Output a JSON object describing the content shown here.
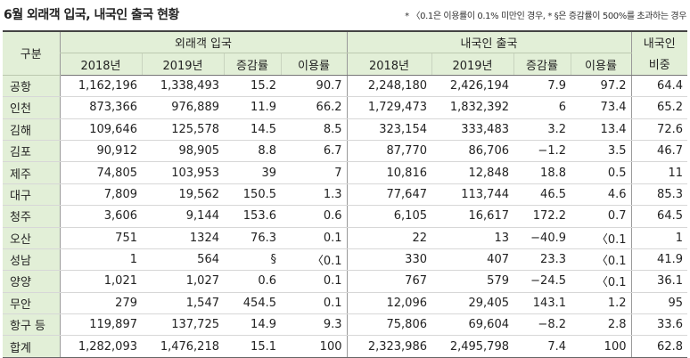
{
  "title": "6월 외래객 입국, 내국인 출국 현황",
  "note": "* 〈0.1은 이용률이 0.1% 미만인 경우, * §은 증감률이 500%를 초과하는 경우",
  "header": {
    "gubun": "구분",
    "foreign_group": "외래객 입국",
    "domestic_group": "내국인 출국",
    "ratio_group_l1": "내국인",
    "ratio_group_l2": "비중",
    "col_2018": "2018년",
    "col_2019": "2019년",
    "col_change": "증감률",
    "col_usage": "이용률"
  },
  "rows": [
    {
      "name": "공항",
      "f2018": "1,162,196",
      "f2019": "1,338,493",
      "fchg": "15.2",
      "fuse": "90.7",
      "d2018": "2,248,180",
      "d2019": "2,426,194",
      "dchg": "7.9",
      "duse": "97.2",
      "ratio": "64.4"
    },
    {
      "name": "인천",
      "f2018": "873,366",
      "f2019": "976,889",
      "fchg": "11.9",
      "fuse": "66.2",
      "d2018": "1,729,473",
      "d2019": "1,832,392",
      "dchg": "6",
      "duse": "73.4",
      "ratio": "65.2"
    },
    {
      "name": "김해",
      "f2018": "109,646",
      "f2019": "125,578",
      "fchg": "14.5",
      "fuse": "8.5",
      "d2018": "323,154",
      "d2019": "333,483",
      "dchg": "3.2",
      "duse": "13.4",
      "ratio": "72.6"
    },
    {
      "name": "김포",
      "f2018": "90,912",
      "f2019": "98,905",
      "fchg": "8.8",
      "fuse": "6.7",
      "d2018": "87,770",
      "d2019": "86,706",
      "dchg": "−1.2",
      "duse": "3.5",
      "ratio": "46.7"
    },
    {
      "name": "제주",
      "f2018": "74,805",
      "f2019": "103,953",
      "fchg": "39",
      "fuse": "7",
      "d2018": "10,816",
      "d2019": "12,848",
      "dchg": "18.8",
      "duse": "0.5",
      "ratio": "11"
    },
    {
      "name": "대구",
      "f2018": "7,809",
      "f2019": "19,562",
      "fchg": "150.5",
      "fuse": "1.3",
      "d2018": "77,647",
      "d2019": "113,744",
      "dchg": "46.5",
      "duse": "4.6",
      "ratio": "85.3"
    },
    {
      "name": "청주",
      "f2018": "3,606",
      "f2019": "9,144",
      "fchg": "153.6",
      "fuse": "0.6",
      "d2018": "6,105",
      "d2019": "16,617",
      "dchg": "172.2",
      "duse": "0.7",
      "ratio": "64.5"
    },
    {
      "name": "오산",
      "f2018": "751",
      "f2019": "1324",
      "fchg": "76.3",
      "fuse": "0.1",
      "d2018": "22",
      "d2019": "13",
      "dchg": "−40.9",
      "duse": "〈0.1",
      "ratio": "1"
    },
    {
      "name": "성남",
      "f2018": "1",
      "f2019": "564",
      "fchg": "§",
      "fuse": "〈0.1",
      "d2018": "330",
      "d2019": "407",
      "dchg": "23.3",
      "duse": "〈0.1",
      "ratio": "41.9"
    },
    {
      "name": "양양",
      "f2018": "1,021",
      "f2019": "1,027",
      "fchg": "0.6",
      "fuse": "0.1",
      "d2018": "767",
      "d2019": "579",
      "dchg": "−24.5",
      "duse": "〈0.1",
      "ratio": "36.1"
    },
    {
      "name": "무안",
      "f2018": "279",
      "f2019": "1,547",
      "fchg": "454.5",
      "fuse": "0.1",
      "d2018": "12,096",
      "d2019": "29,405",
      "dchg": "143.1",
      "duse": "1.2",
      "ratio": "95"
    },
    {
      "name": "항구 등",
      "f2018": "119,897",
      "f2019": "137,725",
      "fchg": "14.9",
      "fuse": "9.3",
      "d2018": "75,806",
      "d2019": "69,604",
      "dchg": "−8.2",
      "duse": "2.8",
      "ratio": "33.6"
    },
    {
      "name": "합계",
      "f2018": "1,282,093",
      "f2019": "1,476,218",
      "fchg": "15.1",
      "fuse": "100",
      "d2018": "2,323,986",
      "d2019": "2,495,798",
      "dchg": "7.4",
      "duse": "100",
      "ratio": "62.8"
    }
  ],
  "colors": {
    "header_bg": "#e2efd7"
  }
}
